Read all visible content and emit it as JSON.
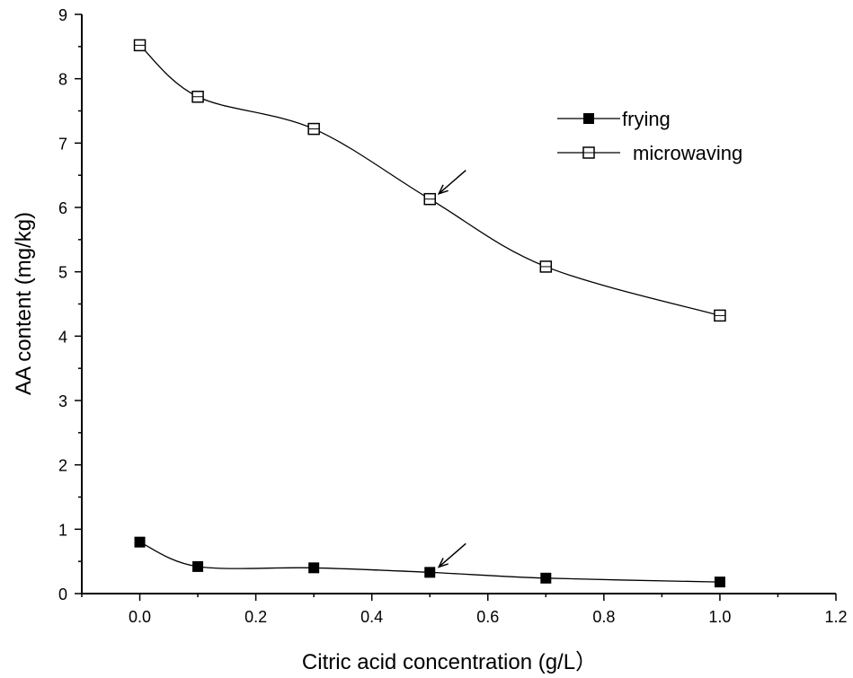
{
  "chart_data": {
    "type": "line",
    "title": "",
    "xlabel": "Citric acid concentration (g/L）",
    "ylabel": "AA content (mg/kg)",
    "xlim": [
      -0.1,
      1.2
    ],
    "ylim": [
      0,
      9
    ],
    "xticks": [
      0.0,
      0.2,
      0.4,
      0.6,
      0.8,
      1.0,
      1.2
    ],
    "xtick_labels": [
      "0.0",
      "0.2",
      "0.4",
      "0.6",
      "0.8",
      "1.0",
      "1.2"
    ],
    "yticks": [
      0,
      1,
      2,
      3,
      4,
      5,
      6,
      7,
      8,
      9
    ],
    "ytick_labels": [
      "0",
      "1",
      "2",
      "3",
      "4",
      "5",
      "6",
      "7",
      "8",
      "9"
    ],
    "x": [
      0.0,
      0.1,
      0.3,
      0.5,
      0.7,
      1.0
    ],
    "series": [
      {
        "name": "frying",
        "marker": "filled-square",
        "values": [
          0.8,
          0.42,
          0.4,
          0.33,
          0.24,
          0.18
        ]
      },
      {
        "name": "microwaving",
        "marker": "open-square",
        "values": [
          8.52,
          7.72,
          7.22,
          6.13,
          5.08,
          4.32
        ]
      }
    ],
    "legend": {
      "position": "top-right",
      "entries": [
        "frying",
        "microwaving"
      ]
    },
    "annotations": [
      {
        "type": "arrow",
        "series": "microwaving",
        "x": 0.5
      },
      {
        "type": "arrow",
        "series": "frying",
        "x": 0.5
      }
    ],
    "grid": false
  }
}
